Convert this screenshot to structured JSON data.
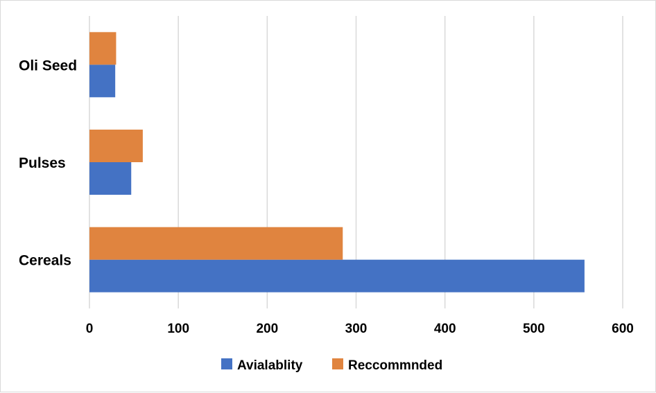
{
  "chart_data": {
    "type": "bar",
    "orientation": "horizontal",
    "categories": [
      "Cereals",
      "Pulses",
      "Oli Seed"
    ],
    "series": [
      {
        "name": "Avialablity",
        "values": [
          557,
          47,
          29
        ],
        "color": "#4472C4"
      },
      {
        "name": "Reccommnded",
        "values": [
          285,
          60,
          30
        ],
        "color": "#E0843F"
      }
    ],
    "xlim": [
      0,
      600
    ],
    "xticks": [
      "0",
      "100",
      "200",
      "300",
      "400",
      "500",
      "600"
    ],
    "grid": true,
    "legend_position": "bottom"
  }
}
